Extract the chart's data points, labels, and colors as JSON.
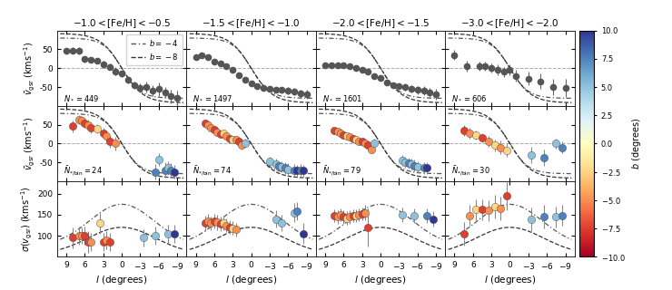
{
  "col_titles": [
    "$-1.0 < [\\mathrm{Fe/H}] < -0.5$",
    "$-1.5 < [\\mathrm{Fe/H}] < -1.0$",
    "$-2.0 < [\\mathrm{Fe/H}] < -1.5$",
    "$-3.0 < [\\mathrm{Fe/H}] < -2.0$"
  ],
  "row0_ylabel": "$\\bar{v}_{\\mathrm{gsr}}\\;(\\mathrm{kms}^{-1})$",
  "row1_ylabel": "$\\bar{v}_{\\mathrm{gsr}}\\;(\\mathrm{kms}^{-1})$",
  "row2_ylabel": "$\\sigma(v_{\\mathrm{gsr}})\\;(\\mathrm{kms}^{-1})$",
  "xlabel": "$l$ (degrees)",
  "counts_row0": [
    "$N_* = 449$",
    "$N_* = 1497$",
    "$N_* = 1601$",
    "$N_* = 606$"
  ],
  "counts_row1": [
    "$\\bar{N}_{*/\\mathrm{bin}} = 24$",
    "$\\bar{N}_{*/\\mathrm{bin}} = 74$",
    "$\\bar{N}_{*/\\mathrm{bin}} = 79$",
    "$\\bar{N}_{*/\\mathrm{bin}} = 30$"
  ],
  "colorbar_label": "$b$ (degrees)"
}
